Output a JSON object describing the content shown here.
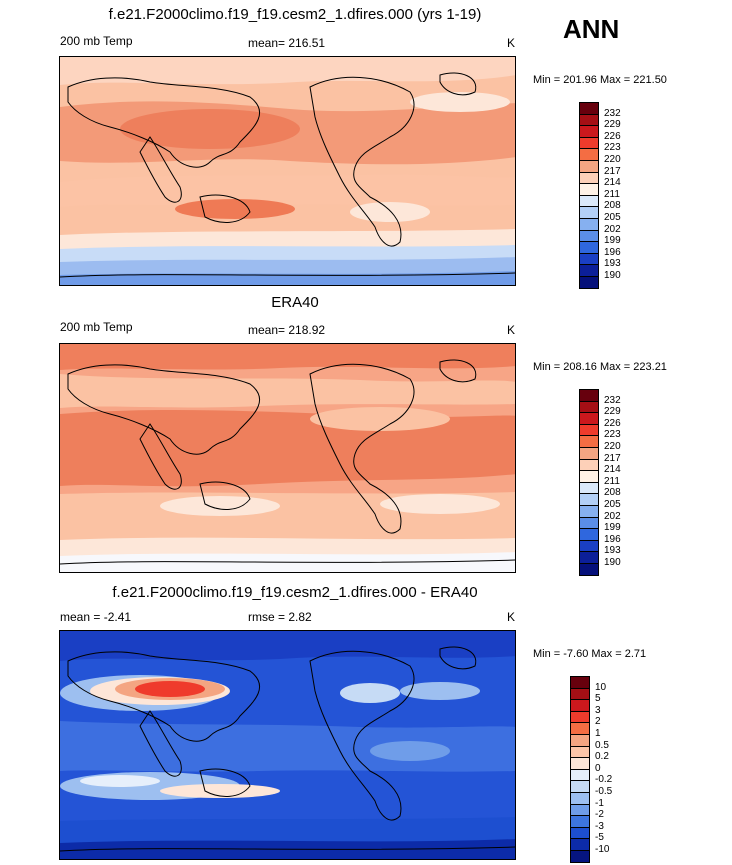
{
  "season": "ANN",
  "panels": [
    {
      "title": "f.e21.F2000climo.f19_f19.cesm2_1.dfires.000 (yrs 1-19)",
      "left_label": "200 mb Temp",
      "center_label": "mean= 216.51",
      "units": "K",
      "minmax": "Min = 201.96 Max = 221.50",
      "colorbar_labels": [
        "232",
        "229",
        "226",
        "223",
        "220",
        "217",
        "214",
        "211",
        "208",
        "205",
        "202",
        "199",
        "196",
        "193",
        "190"
      ],
      "colorbar_colors": [
        "#67000d",
        "#a50f15",
        "#cb181d",
        "#ef3b2c",
        "#f46d43",
        "#f4a582",
        "#fdd0b8",
        "#fff2e6",
        "#dbe9fa",
        "#b3d0f7",
        "#86b0f0",
        "#5b8ee8",
        "#2f67de",
        "#1a3fc4",
        "#0c1f99",
        "#05107a"
      ]
    },
    {
      "title": "ERA40",
      "left_label": "200 mb Temp",
      "center_label": "mean= 218.92",
      "units": "K",
      "minmax": "Min = 208.16 Max = 223.21",
      "colorbar_labels": [
        "232",
        "229",
        "226",
        "223",
        "220",
        "217",
        "214",
        "211",
        "208",
        "205",
        "202",
        "199",
        "196",
        "193",
        "190"
      ],
      "colorbar_colors": [
        "#67000d",
        "#a50f15",
        "#cb181d",
        "#ef3b2c",
        "#f46d43",
        "#f4a582",
        "#fdd0b8",
        "#fff2e6",
        "#dbe9fa",
        "#b3d0f7",
        "#86b0f0",
        "#5b8ee8",
        "#2f67de",
        "#1a3fc4",
        "#0c1f99",
        "#05107a"
      ]
    },
    {
      "title": "f.e21.F2000climo.f19_f19.cesm2_1.dfires.000 - ERA40",
      "left_label": "mean =  -2.41",
      "center_label": "rmse =   2.82",
      "units": "K",
      "minmax": "Min =  -7.60 Max =   2.71",
      "colorbar_labels": [
        "10",
        "5",
        "3",
        "2",
        "1",
        "0.5",
        "0.2",
        "0",
        "-0.2",
        "-0.5",
        "-1",
        "-2",
        "-3",
        "-5",
        "-10"
      ],
      "colorbar_colors": [
        "#67000d",
        "#a50f15",
        "#cb181d",
        "#ef3b2c",
        "#f46d43",
        "#f4a582",
        "#fcc5a8",
        "#fde6d8",
        "#e6effb",
        "#c6dbf5",
        "#9dbff0",
        "#6f9de9",
        "#3d75e0",
        "#1d4fd0",
        "#0c2ba8",
        "#061580"
      ]
    }
  ]
}
